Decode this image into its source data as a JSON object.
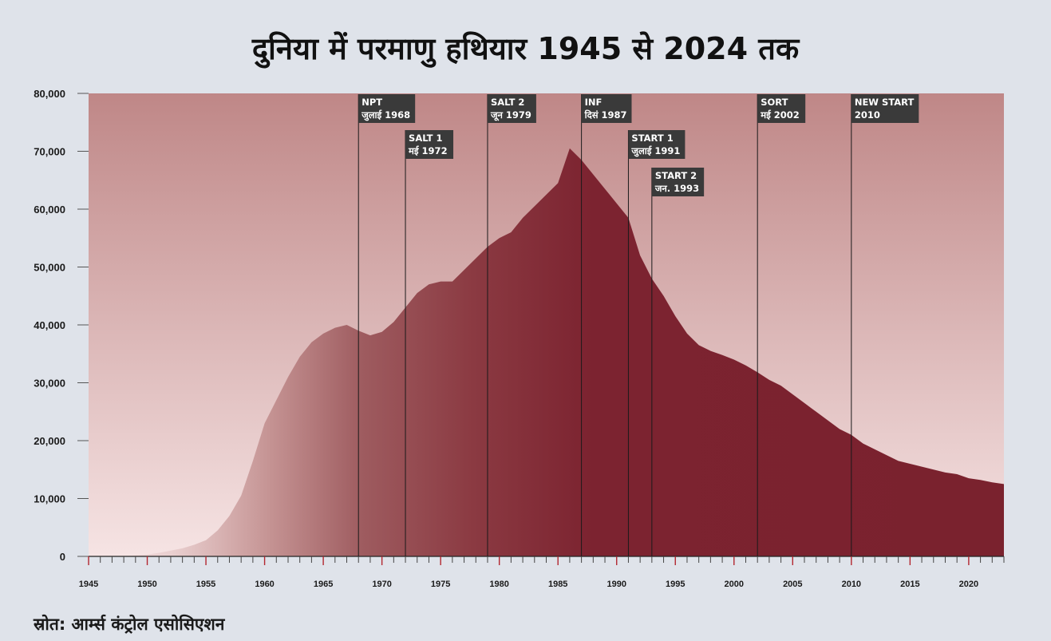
{
  "chart_data": {
    "type": "area",
    "title": "दुनिया में परमाणु हथियार 1945 से 2024 तक",
    "source": "स्रोत: आर्म्स कंट्रोल एसोसिएशन",
    "xlabel": "",
    "ylabel": "",
    "xlim": [
      1945,
      2023
    ],
    "ylim": [
      0,
      80000
    ],
    "y_ticks": [
      0,
      10000,
      20000,
      30000,
      40000,
      50000,
      60000,
      70000,
      80000
    ],
    "y_tick_labels": [
      "0",
      "10,000",
      "20,000",
      "30,000",
      "40,000",
      "50,000",
      "60,000",
      "70,000",
      "80,000"
    ],
    "x_tick_labels": [
      1945,
      1950,
      1955,
      1960,
      1965,
      1970,
      1975,
      1980,
      1985,
      1990,
      1995,
      2000,
      2005,
      2010,
      2015,
      2020
    ],
    "colors": {
      "area": "#7a222e",
      "area_light": "#f3dcdc",
      "background_top": "#bf8787",
      "background_bottom": "#f6e4e4",
      "event_box": "#3a3a3a",
      "event_line": "#1a1a1a"
    },
    "x": [
      1945,
      1946,
      1947,
      1948,
      1949,
      1950,
      1951,
      1952,
      1953,
      1954,
      1955,
      1956,
      1957,
      1958,
      1959,
      1960,
      1961,
      1962,
      1963,
      1964,
      1965,
      1966,
      1967,
      1968,
      1969,
      1970,
      1971,
      1972,
      1973,
      1974,
      1975,
      1976,
      1977,
      1978,
      1979,
      1980,
      1981,
      1982,
      1983,
      1984,
      1985,
      1986,
      1987,
      1988,
      1989,
      1990,
      1991,
      1992,
      1993,
      1994,
      1995,
      1996,
      1997,
      1998,
      1999,
      2000,
      2001,
      2002,
      2003,
      2004,
      2005,
      2006,
      2007,
      2008,
      2009,
      2010,
      2011,
      2012,
      2013,
      2014,
      2015,
      2016,
      2017,
      2018,
      2019,
      2020,
      2021,
      2022,
      2023
    ],
    "values": [
      2,
      9,
      13,
      50,
      170,
      300,
      600,
      1000,
      1400,
      2000,
      2800,
      4500,
      7000,
      10500,
      16500,
      23000,
      27000,
      31000,
      34500,
      37000,
      38500,
      39500,
      40000,
      39000,
      38200,
      38800,
      40500,
      43000,
      45500,
      47000,
      47500,
      47500,
      49500,
      51500,
      53500,
      55000,
      56000,
      58500,
      60500,
      62500,
      64500,
      70500,
      68500,
      66000,
      63500,
      61000,
      58500,
      52000,
      48000,
      45000,
      41500,
      38500,
      36500,
      35500,
      34800,
      34000,
      33000,
      31800,
      30500,
      29500,
      28000,
      26500,
      25000,
      23500,
      22000,
      21000,
      19500,
      18500,
      17500,
      16500,
      16000,
      15500,
      15000,
      14500,
      14200,
      13500,
      13200,
      12800,
      12500
    ],
    "events": [
      {
        "year": 1968,
        "line1": "NPT",
        "line2": "जुलाई 1968",
        "row": 0
      },
      {
        "year": 1972,
        "line1": "SALT 1",
        "line2": "मई 1972",
        "row": 1
      },
      {
        "year": 1979,
        "line1": "SALT 2",
        "line2": "जून 1979",
        "row": 0
      },
      {
        "year": 1987,
        "line1": "INF",
        "line2": "दिसं 1987",
        "row": 0
      },
      {
        "year": 1991,
        "line1": "START 1",
        "line2": "जुलाई 1991",
        "row": 1
      },
      {
        "year": 1993,
        "line1": "START 2",
        "line2": "जन. 1993",
        "row": 2
      },
      {
        "year": 2002,
        "line1": "SORT",
        "line2": "मई 2002",
        "row": 0
      },
      {
        "year": 2010,
        "line1": "NEW START",
        "line2": "2010",
        "row": 0
      }
    ]
  }
}
